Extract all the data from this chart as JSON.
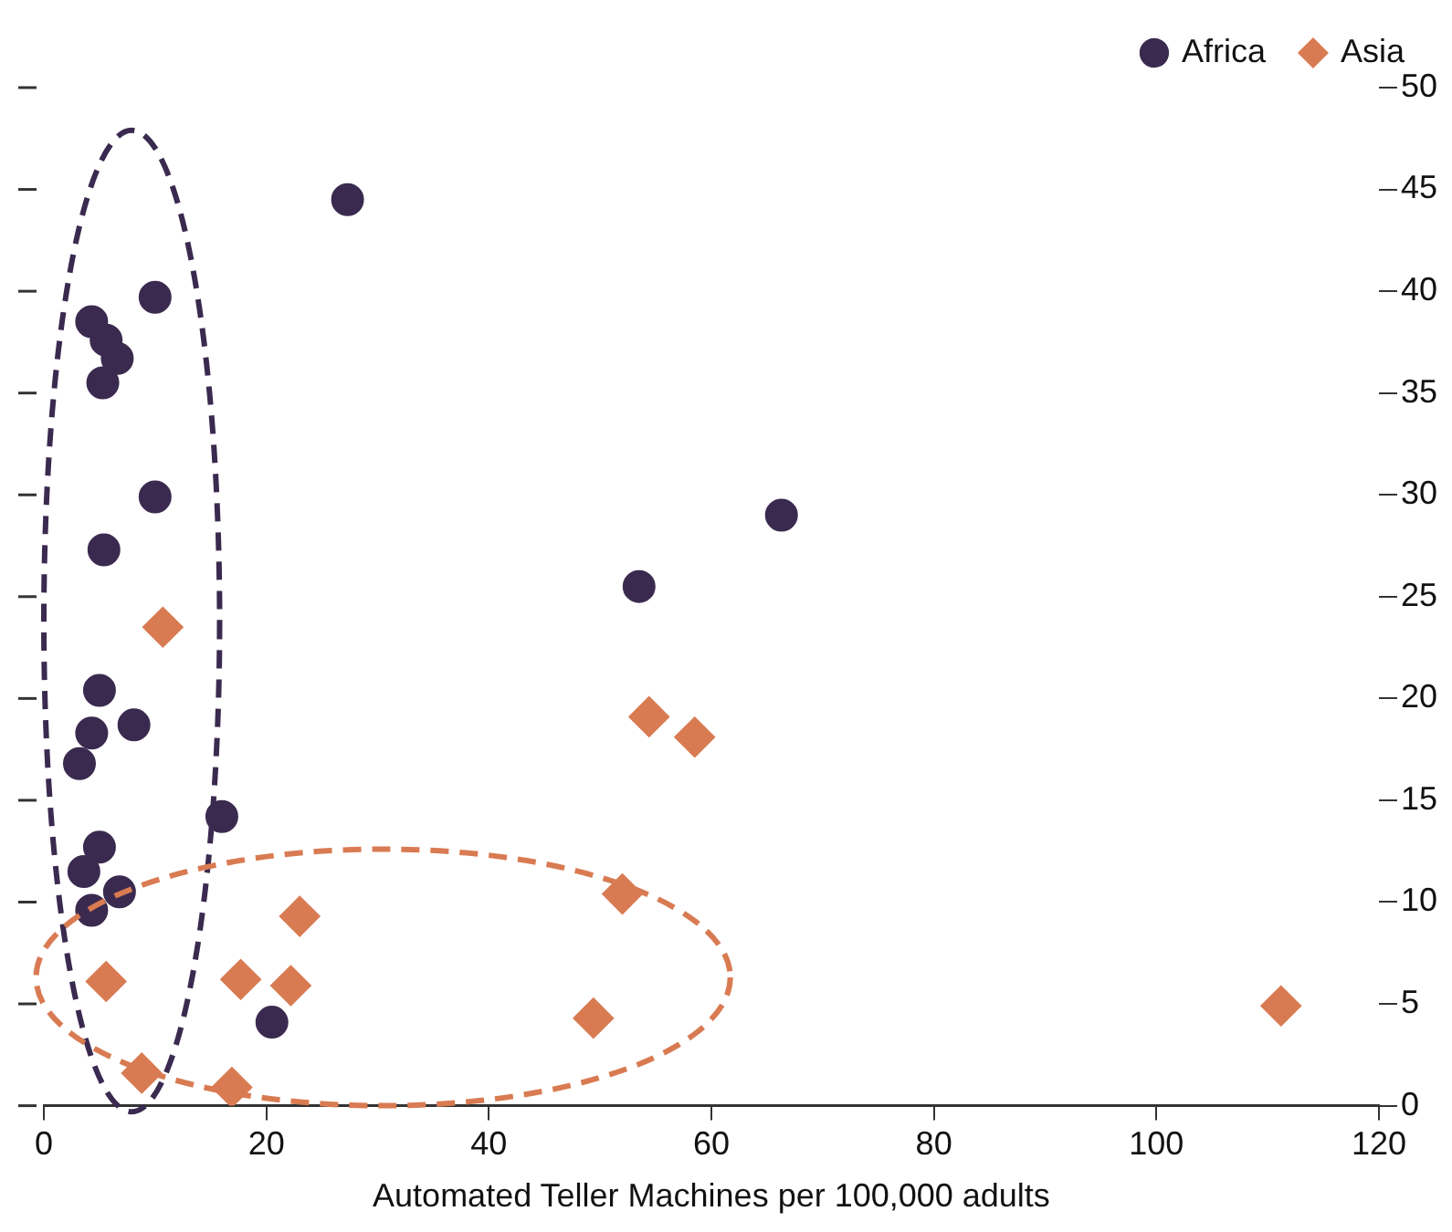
{
  "chart_data": {
    "type": "scatter",
    "xlabel": "Automated Teller Machines per 100,000 adults",
    "xlim": [
      0,
      120
    ],
    "xticks": [
      0,
      20,
      40,
      60,
      80,
      100,
      120
    ],
    "ylim": [
      0,
      50
    ],
    "yticks": [
      0,
      5,
      10,
      15,
      20,
      25,
      30,
      35,
      40,
      45,
      50
    ],
    "grid": false,
    "legend": "top right",
    "series": [
      {
        "name": "Africa",
        "color": "#3b2a4f",
        "marker": "circle",
        "x": [
          27.3,
          10.0,
          4.3,
          5.6,
          6.6,
          5.3,
          10.0,
          5.4,
          66.3,
          53.5,
          5.0,
          8.1,
          4.3,
          3.2,
          16.0,
          5.0,
          3.6,
          6.8,
          4.3,
          20.5
        ],
        "values": [
          44.5,
          39.7,
          38.5,
          37.6,
          36.7,
          35.5,
          29.9,
          27.3,
          29.0,
          25.5,
          20.4,
          18.7,
          18.3,
          16.8,
          14.2,
          12.7,
          11.5,
          10.5,
          9.6,
          4.1
        ]
      },
      {
        "name": "Asia",
        "color": "#d97b52",
        "marker": "diamond",
        "x": [
          10.7,
          54.4,
          58.5,
          52.0,
          23.0,
          5.6,
          17.7,
          22.2,
          49.4,
          8.8,
          16.9,
          111.2
        ],
        "values": [
          23.5,
          19.1,
          18.1,
          10.4,
          9.3,
          6.1,
          6.2,
          5.9,
          4.3,
          1.6,
          0.9,
          4.9
        ]
      }
    ]
  }
}
